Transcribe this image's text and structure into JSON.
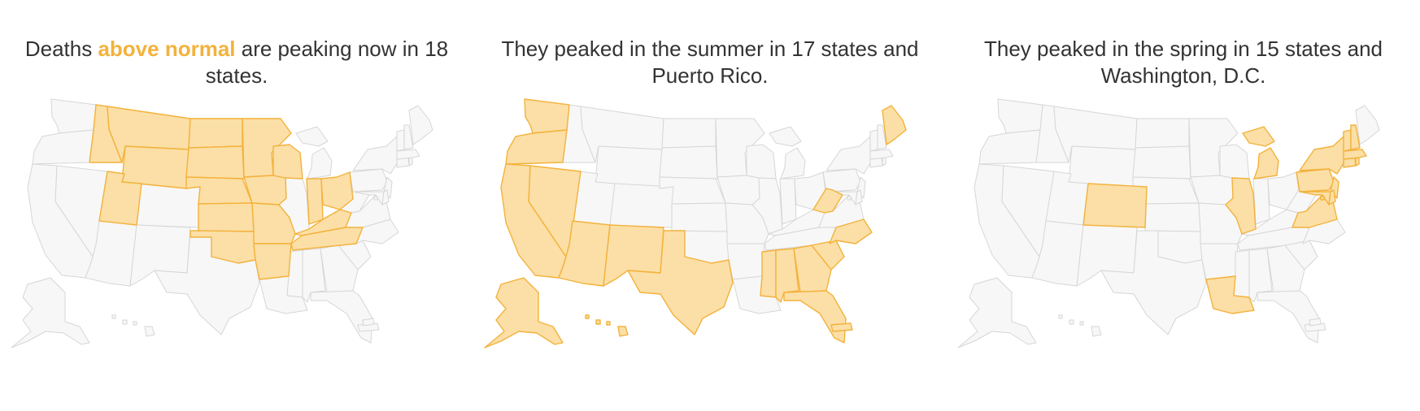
{
  "colors": {
    "highlight": "#f3b23c",
    "highlight_fill": "#fbdfa6",
    "base_fill": "#f7f7f7",
    "base_stroke": "#d6d6d6",
    "text": "#333333"
  },
  "panels": [
    {
      "title_pre": "Deaths ",
      "title_em": "above normal",
      "title_post": " are peaking now in 18 states.",
      "highlighted_states": [
        "ID",
        "MT",
        "WY",
        "ND",
        "SD",
        "NE",
        "KS",
        "OK",
        "MN",
        "IA",
        "MO",
        "AR",
        "WI",
        "IN",
        "OH",
        "KY",
        "TN",
        "UT"
      ]
    },
    {
      "title_pre": "They peaked in the summer in 17 states and Puerto Rico.",
      "title_em": "",
      "title_post": "",
      "highlighted_states": [
        "WA",
        "OR",
        "CA",
        "NV",
        "AZ",
        "NM",
        "TX",
        "MS",
        "AL",
        "GA",
        "SC",
        "NC",
        "FL",
        "WV",
        "ME",
        "AK",
        "HI",
        "PR"
      ]
    },
    {
      "title_pre": "They peaked in the spring in 15 states and Washington, D.C.",
      "title_em": "",
      "title_post": "",
      "highlighted_states": [
        "CO",
        "LA",
        "IL",
        "MI",
        "NY",
        "PA",
        "NJ",
        "MD",
        "DE",
        "DC",
        "VA",
        "MA",
        "CT",
        "RI",
        "NH",
        "VT"
      ]
    }
  ]
}
